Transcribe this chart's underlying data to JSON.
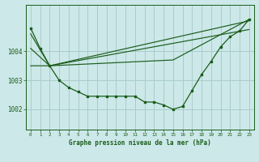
{
  "bg_color": "#cce8e8",
  "grid_color": "#aacccc",
  "line_color": "#1a5c1a",
  "title": "Graphe pression niveau de la mer (hPa)",
  "ylabel_ticks": [
    1002,
    1003,
    1004
  ],
  "x_range": [
    -0.5,
    23.5
  ],
  "y_range": [
    1001.3,
    1005.6
  ],
  "series1": {
    "x": [
      0,
      1,
      2,
      3,
      4,
      5,
      6,
      7,
      8,
      9,
      10,
      11,
      12,
      13,
      14,
      15,
      16,
      17,
      18,
      19,
      20,
      21,
      22,
      23
    ],
    "y": [
      1004.8,
      1004.1,
      1003.5,
      1003.0,
      1002.75,
      1002.6,
      1002.45,
      1002.45,
      1002.45,
      1002.45,
      1002.45,
      1002.45,
      1002.25,
      1002.25,
      1002.15,
      1002.0,
      1002.1,
      1002.65,
      1003.2,
      1003.65,
      1004.15,
      1004.5,
      1004.7,
      1005.1
    ]
  },
  "series2": {
    "x": [
      0,
      2,
      23
    ],
    "y": [
      1004.1,
      1003.5,
      1005.05
    ]
  },
  "series3": {
    "x": [
      0,
      2,
      23
    ],
    "y": [
      1003.5,
      1003.5,
      1004.75
    ]
  },
  "series4": {
    "x": [
      0,
      2,
      15,
      23
    ],
    "y": [
      1004.6,
      1003.5,
      1003.7,
      1005.1
    ]
  }
}
